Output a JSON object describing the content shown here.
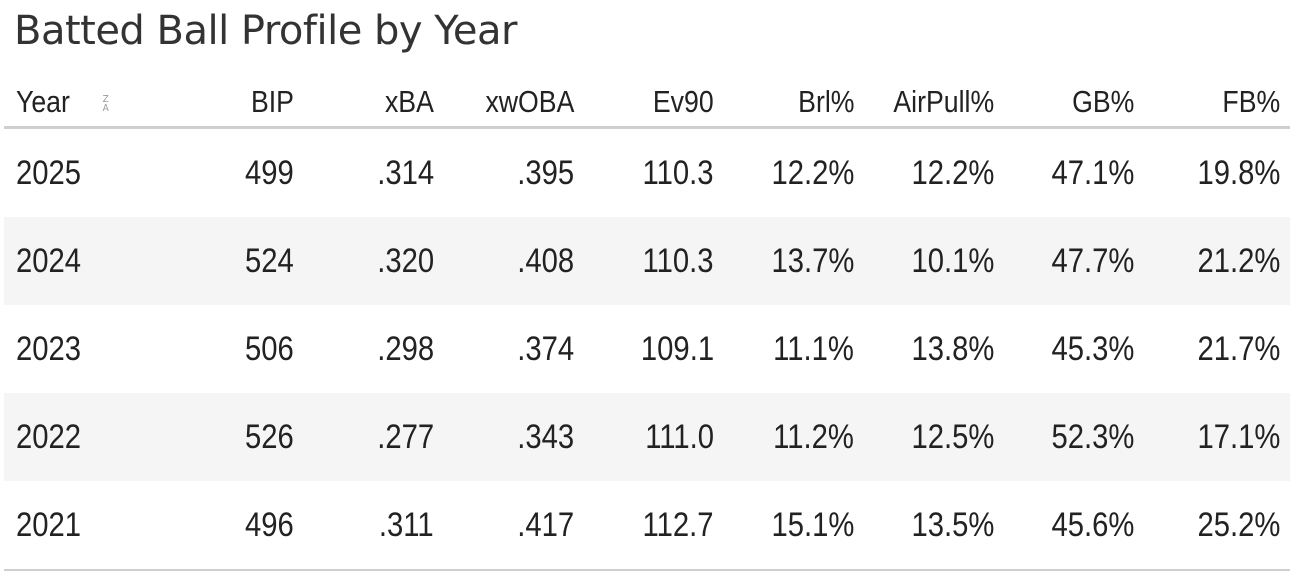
{
  "title": "Batted Ball Profile by Year",
  "table": {
    "columns": [
      "Year",
      "BIP",
      "xBA",
      "xwOBA",
      "Ev90",
      "Brl%",
      "AirPull%",
      "GB%",
      "FB%"
    ],
    "sort_icon": {
      "name": "sort-za-icon",
      "top": "Z",
      "bottom": "A"
    },
    "rows": [
      [
        "2025",
        "499",
        ".314",
        ".395",
        "110.3",
        "12.2%",
        "12.2%",
        "47.1%",
        "19.8%"
      ],
      [
        "2024",
        "524",
        ".320",
        ".408",
        "110.3",
        "13.7%",
        "10.1%",
        "47.7%",
        "21.2%"
      ],
      [
        "2023",
        "506",
        ".298",
        ".374",
        "109.1",
        "11.1%",
        "13.8%",
        "45.3%",
        "21.7%"
      ],
      [
        "2022",
        "526",
        ".277",
        ".343",
        "111.0",
        "11.2%",
        "12.5%",
        "52.3%",
        "17.1%"
      ],
      [
        "2021",
        "496",
        ".311",
        ".417",
        "112.7",
        "15.1%",
        "13.5%",
        "45.6%",
        "25.2%"
      ]
    ]
  },
  "colors": {
    "text": "#222222",
    "title": "#333333",
    "row_stripe": "#f5f5f5",
    "rule": "#cfcfcf",
    "sort_icon": "#9a9a9a"
  }
}
